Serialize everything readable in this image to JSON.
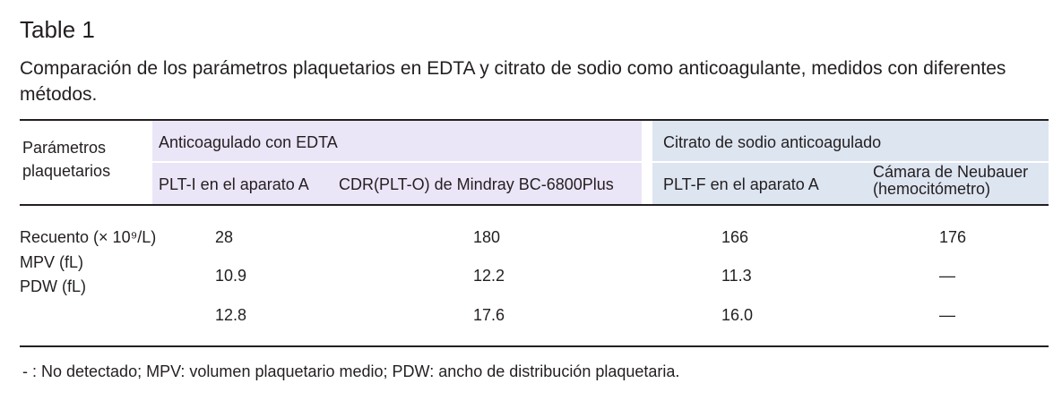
{
  "title": "Table 1",
  "caption": "Comparación de los parámetros plaquetarios en EDTA y citrato de sodio como anticoagulante, medidos con diferentes métodos.",
  "table": {
    "header": {
      "row_header": "Parámetros plaquetarios",
      "groups": [
        {
          "label": "Anticoagulado con EDTA",
          "columns": [
            "PLT-I en el aparato A",
            "CDR(PLT-O) de Mindray BC-6800Plus"
          ]
        },
        {
          "label": "Citrato de sodio anticoagulado",
          "columns": [
            "PLT-F en el aparato A",
            "Cámara de Neubauer (hemocitómetro)"
          ]
        }
      ]
    },
    "row_labels": [
      "Recuento (× 10⁹/L)",
      "MPV (fL)",
      "PDW (fL)"
    ],
    "rows": [
      [
        "28",
        "180",
        "166",
        "176"
      ],
      [
        "10.9",
        "12.2",
        "11.3",
        "—"
      ],
      [
        "12.8",
        "17.6",
        "16.0",
        "—"
      ]
    ]
  },
  "footnote": "- : No detectado; MPV: volumen plaquetario medio; PDW: ancho de distribución plaquetaria."
}
